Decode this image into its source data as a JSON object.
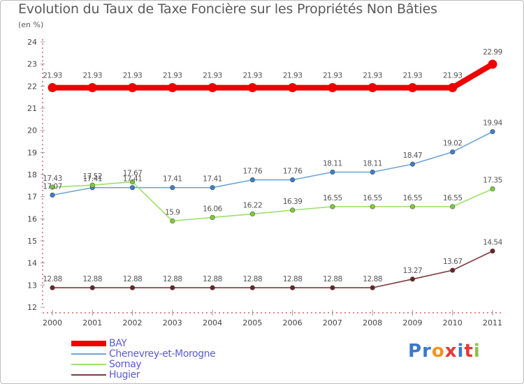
{
  "title": "Evolution du Taux de Taxe Foncière sur les Propriétés Non Bâties",
  "unit_label": "(en %)",
  "logo": {
    "text": "Proxiti",
    "letter_colors": [
      "#3a78c9",
      "#3a78c9",
      "#f7931e",
      "#e53935",
      "#3a78c9",
      "#e53935",
      "#8bc34a"
    ]
  },
  "chart_data": {
    "type": "line",
    "title": "Evolution du Taux de Taxe Foncière sur les Propriétés Non Bâties",
    "xlabel": "",
    "ylabel": "(en %)",
    "x": [
      "2000",
      "2001",
      "2002",
      "2003",
      "2004",
      "2005",
      "2006",
      "2007",
      "2008",
      "2009",
      "2010",
      "2011"
    ],
    "ylim": [
      12,
      24
    ],
    "yticks": [
      "12",
      "13",
      "14",
      "15",
      "16",
      "17",
      "18",
      "19",
      "20",
      "21",
      "22",
      "23",
      "24"
    ],
    "grid": false,
    "legend_position": "bottom-left",
    "series": [
      {
        "name": "BAY",
        "color": "#ee0000",
        "fill": "#ee0000",
        "bold": true,
        "values": [
          21.93,
          21.93,
          21.93,
          21.93,
          21.93,
          21.93,
          21.93,
          21.93,
          21.93,
          21.93,
          21.93,
          22.99
        ],
        "labels": [
          "21.93",
          "21.93",
          "21.93",
          "21.93",
          "21.93",
          "21.93",
          "21.93",
          "21.93",
          "21.93",
          "21.93",
          "21.93",
          "22.99"
        ]
      },
      {
        "name": "Chenevrey-et-Morogne",
        "color": "#6ea5d8",
        "fill": "#3c7fc7",
        "bold": false,
        "values": [
          17.07,
          17.41,
          17.41,
          17.41,
          17.41,
          17.76,
          17.76,
          18.11,
          18.11,
          18.47,
          19.02,
          19.94
        ],
        "labels": [
          "17.07",
          "17.41",
          "17.41",
          "17.41",
          "17.41",
          "17.76",
          "17.76",
          "18.11",
          "18.11",
          "18.47",
          "19.02",
          "19.94"
        ]
      },
      {
        "name": "Sornay",
        "color": "#9ee06a",
        "fill": "#7acc3a",
        "bold": false,
        "values": [
          17.43,
          17.52,
          17.67,
          15.9,
          16.06,
          16.22,
          16.39,
          16.55,
          16.55,
          16.55,
          16.55,
          17.35
        ],
        "labels": [
          "17.43",
          "17.52",
          "17.67",
          "15.9",
          "16.06",
          "16.22",
          "16.39",
          "16.55",
          "16.55",
          "16.55",
          "16.55",
          "17.35"
        ]
      },
      {
        "name": "Hugier",
        "color": "#7a3b3b",
        "fill": "#6b2222",
        "bold": false,
        "values": [
          12.88,
          12.88,
          12.88,
          12.88,
          12.88,
          12.88,
          12.88,
          12.88,
          12.88,
          13.27,
          13.67,
          14.54
        ],
        "labels": [
          "12.88",
          "12.88",
          "12.88",
          "12.88",
          "12.88",
          "12.88",
          "12.88",
          "12.88",
          "12.88",
          "13.27",
          "13.67",
          "14.54"
        ]
      }
    ]
  }
}
